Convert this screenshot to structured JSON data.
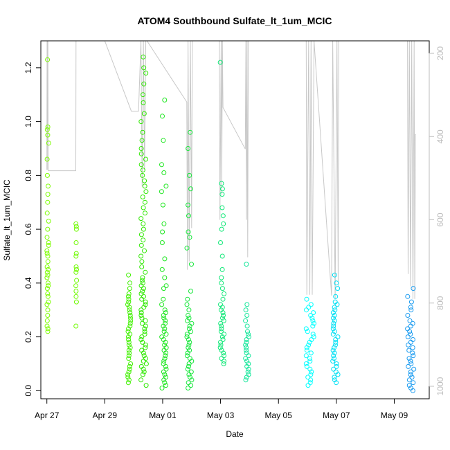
{
  "chart_data": {
    "type": "scatter",
    "title": "ATOM4 Southbound Sulfate_lt_1um_MCIC",
    "xlabel": "Date",
    "ylabel": "Sulfate_lt_1um_MCIC",
    "x_ticks": [
      "Apr 27",
      "Apr 29",
      "May 01",
      "May 03",
      "May 05",
      "May 07",
      "May 09"
    ],
    "y_ticks": [
      "0.0",
      "0.2",
      "0.4",
      "0.6",
      "0.8",
      "1.0",
      "1.2"
    ],
    "y2_ticks": [
      "200",
      "400",
      "600",
      "800",
      "1000"
    ],
    "xlim": [
      "2018-04-26T19:00",
      "2018-05-10T05:00"
    ],
    "ylim": [
      -0.03,
      1.3
    ],
    "y2lim": [
      1030,
      170
    ],
    "y2_reversed": true,
    "grid": false,
    "colors": {
      "axis": "#000000",
      "secondary_axis": "#bdbdbd",
      "pressure_trace": "#c8c8c8"
    },
    "point_clusters": [
      {
        "start": "2018-04-27T00:00",
        "end": "2018-04-27T01:30",
        "color": "#7cfc00",
        "values": [
          0.22,
          0.23,
          0.24,
          0.26,
          0.28,
          0.3,
          0.32,
          0.33,
          0.35,
          0.36,
          0.38,
          0.39,
          0.4,
          0.42,
          0.43,
          0.44,
          0.45,
          0.46,
          0.48,
          0.5,
          0.51,
          0.52,
          0.54,
          0.55,
          0.57,
          0.6,
          0.63,
          0.66,
          0.7,
          0.73,
          0.76,
          0.8,
          0.86,
          0.92,
          0.95,
          0.97,
          0.98,
          1.23
        ]
      },
      {
        "start": "2018-04-28T00:00",
        "end": "2018-04-28T00:40",
        "color": "#6ffa00",
        "values": [
          0.24,
          0.33,
          0.35,
          0.37,
          0.39,
          0.41,
          0.44,
          0.45,
          0.46,
          0.5,
          0.51,
          0.55,
          0.6,
          0.61,
          0.62
        ]
      },
      {
        "start": "2018-04-29T19:00",
        "end": "2018-04-29T21:30",
        "color": "#40f000",
        "values": [
          0.03,
          0.04,
          0.05,
          0.06,
          0.07,
          0.08,
          0.09,
          0.1,
          0.12,
          0.13,
          0.14,
          0.15,
          0.16,
          0.17,
          0.18,
          0.19,
          0.2,
          0.21,
          0.22,
          0.23,
          0.24,
          0.25,
          0.26,
          0.27,
          0.28,
          0.29,
          0.3,
          0.31,
          0.32,
          0.33,
          0.34,
          0.35,
          0.36,
          0.38,
          0.4,
          0.43
        ]
      },
      {
        "start": "2018-04-30T06:00",
        "end": "2018-04-30T10:30",
        "color": "#2ee800",
        "values": [
          0.02,
          0.04,
          0.06,
          0.07,
          0.08,
          0.09,
          0.1,
          0.11,
          0.12,
          0.13,
          0.14,
          0.15,
          0.16,
          0.17,
          0.18,
          0.19,
          0.2,
          0.21,
          0.22,
          0.23,
          0.24,
          0.25,
          0.26,
          0.27,
          0.28,
          0.29,
          0.3,
          0.31,
          0.32,
          0.33,
          0.34,
          0.35,
          0.36,
          0.37,
          0.38,
          0.39,
          0.4,
          0.41,
          0.42,
          0.44,
          0.46,
          0.48,
          0.5,
          0.52,
          0.54,
          0.56,
          0.58,
          0.6,
          0.62,
          0.64,
          0.66,
          0.68,
          0.7,
          0.72,
          0.74,
          0.76,
          0.78,
          0.8,
          0.82,
          0.84,
          0.86,
          0.88,
          0.9,
          0.93,
          0.96,
          1.0,
          1.03,
          1.07,
          1.1,
          1.14,
          1.18,
          1.2,
          1.24
        ]
      },
      {
        "start": "2018-04-30T23:00",
        "end": "2018-05-01T03:00",
        "color": "#1ee620",
        "values": [
          0.01,
          0.02,
          0.03,
          0.04,
          0.05,
          0.06,
          0.07,
          0.08,
          0.09,
          0.1,
          0.11,
          0.12,
          0.13,
          0.14,
          0.15,
          0.16,
          0.17,
          0.18,
          0.19,
          0.2,
          0.21,
          0.22,
          0.23,
          0.24,
          0.25,
          0.26,
          0.27,
          0.28,
          0.29,
          0.3,
          0.32,
          0.34,
          0.38,
          0.39,
          0.42,
          0.45,
          0.49,
          0.55,
          0.59,
          0.62,
          0.69,
          0.74,
          0.76,
          0.81,
          0.84,
          0.93,
          1.02,
          1.08
        ]
      },
      {
        "start": "2018-05-01T20:00",
        "end": "2018-05-02T00:30",
        "color": "#16e63a",
        "values": [
          0.01,
          0.02,
          0.03,
          0.04,
          0.05,
          0.06,
          0.07,
          0.08,
          0.09,
          0.1,
          0.11,
          0.12,
          0.13,
          0.14,
          0.15,
          0.16,
          0.17,
          0.18,
          0.19,
          0.2,
          0.21,
          0.22,
          0.23,
          0.24,
          0.25,
          0.26,
          0.27,
          0.28,
          0.3,
          0.32,
          0.34,
          0.37,
          0.47,
          0.53,
          0.57,
          0.59,
          0.65,
          0.69,
          0.75,
          0.8,
          0.9,
          0.96
        ]
      },
      {
        "start": "2018-05-02T23:30",
        "end": "2018-05-03T03:00",
        "color": "#10e878",
        "values": [
          0.1,
          0.11,
          0.12,
          0.13,
          0.14,
          0.15,
          0.16,
          0.17,
          0.18,
          0.19,
          0.2,
          0.21,
          0.22,
          0.23,
          0.24,
          0.25,
          0.26,
          0.27,
          0.28,
          0.29,
          0.3,
          0.31,
          0.32,
          0.34,
          0.36,
          0.38,
          0.4,
          0.42,
          0.45,
          0.5,
          0.55,
          0.6,
          0.62,
          0.65,
          0.68,
          0.73,
          0.75,
          0.77,
          1.22
        ]
      },
      {
        "start": "2018-05-03T20:30",
        "end": "2018-05-03T23:30",
        "color": "#14e69a",
        "values": [
          0.04,
          0.05,
          0.06,
          0.07,
          0.08,
          0.09,
          0.1,
          0.11,
          0.12,
          0.13,
          0.14,
          0.15,
          0.16,
          0.17,
          0.18,
          0.19,
          0.2,
          0.21,
          0.22,
          0.24,
          0.26,
          0.28,
          0.3,
          0.32,
          0.47
        ]
      },
      {
        "start": "2018-05-05T23:00",
        "end": "2018-05-06T05:30",
        "color": "#00ffff",
        "values": [
          0.02,
          0.03,
          0.04,
          0.05,
          0.06,
          0.07,
          0.08,
          0.09,
          0.1,
          0.11,
          0.12,
          0.13,
          0.14,
          0.15,
          0.16,
          0.17,
          0.18,
          0.19,
          0.2,
          0.21,
          0.22,
          0.23,
          0.24,
          0.25,
          0.26,
          0.27,
          0.28,
          0.29,
          0.3,
          0.31,
          0.32,
          0.34
        ]
      },
      {
        "start": "2018-05-06T21:00",
        "end": "2018-05-07T01:30",
        "color": "#00e0f4",
        "values": [
          0.03,
          0.04,
          0.05,
          0.06,
          0.07,
          0.08,
          0.09,
          0.1,
          0.11,
          0.12,
          0.13,
          0.14,
          0.15,
          0.16,
          0.17,
          0.18,
          0.19,
          0.2,
          0.21,
          0.22,
          0.23,
          0.24,
          0.25,
          0.26,
          0.27,
          0.28,
          0.29,
          0.3,
          0.31,
          0.32,
          0.33,
          0.35,
          0.38,
          0.4,
          0.43
        ]
      },
      {
        "start": "2018-05-09T11:00",
        "end": "2018-05-09T17:00",
        "color": "#1a9bf0",
        "values": [
          0.0,
          0.01,
          0.02,
          0.03,
          0.04,
          0.05,
          0.06,
          0.07,
          0.08,
          0.09,
          0.1,
          0.11,
          0.12,
          0.13,
          0.14,
          0.15,
          0.16,
          0.17,
          0.18,
          0.19,
          0.2,
          0.21,
          0.22,
          0.23,
          0.24,
          0.25,
          0.26,
          0.28,
          0.3,
          0.31,
          0.33,
          0.35,
          0.38
        ]
      }
    ],
    "pressure_trace": [
      [
        "2018-04-27T00:00",
        480
      ],
      [
        "2018-04-27T00:10",
        170
      ],
      [
        "2018-04-27T00:20",
        480
      ],
      [
        "2018-04-27T00:30",
        170
      ],
      [
        "2018-04-27T00:40",
        420
      ],
      [
        "2018-04-27T00:50",
        170
      ],
      [
        "2018-04-27T01:00",
        460
      ],
      [
        "2018-04-27T01:10",
        482
      ],
      [
        "2018-04-28T00:00",
        482
      ],
      [
        "2018-04-28T00:10",
        170
      ],
      [
        "2018-04-29T00:00",
        170
      ],
      [
        "2018-04-29T22:00",
        339
      ],
      [
        "2018-04-30T04:00",
        339
      ],
      [
        "2018-04-30T06:00",
        170
      ],
      [
        "2018-04-30T07:00",
        520
      ],
      [
        "2018-04-30T08:00",
        170
      ],
      [
        "2018-04-30T09:00",
        480
      ],
      [
        "2018-04-30T10:00",
        170
      ],
      [
        "2018-04-30T11:00",
        170
      ],
      [
        "2018-05-01T20:00",
        317
      ],
      [
        "2018-05-01T20:30",
        720
      ],
      [
        "2018-05-01T21:00",
        170
      ],
      [
        "2018-05-01T22:00",
        700
      ],
      [
        "2018-05-01T23:00",
        170
      ],
      [
        "2018-05-02T00:00",
        620
      ],
      [
        "2018-05-02T00:30",
        170
      ],
      [
        "2018-05-02T23:00",
        170
      ],
      [
        "2018-05-02T23:30",
        600
      ],
      [
        "2018-05-03T00:30",
        170
      ],
      [
        "2018-05-03T01:00",
        540
      ],
      [
        "2018-05-03T01:30",
        170
      ],
      [
        "2018-05-03T02:00",
        330
      ],
      [
        "2018-05-03T20:30",
        430
      ],
      [
        "2018-05-03T21:00",
        170
      ],
      [
        "2018-05-03T21:30",
        600
      ],
      [
        "2018-05-03T22:00",
        170
      ],
      [
        "2018-05-03T22:30",
        690
      ],
      [
        "2018-05-03T23:00",
        170
      ],
      [
        "2018-05-05T23:00",
        170
      ],
      [
        "2018-05-05T23:30",
        780
      ],
      [
        "2018-05-06T01:00",
        170
      ],
      [
        "2018-05-06T02:00",
        780
      ],
      [
        "2018-05-06T03:00",
        170
      ],
      [
        "2018-05-06T04:00",
        780
      ],
      [
        "2018-05-06T05:30",
        170
      ],
      [
        "2018-05-06T20:00",
        782
      ],
      [
        "2018-05-06T21:00",
        170
      ],
      [
        "2018-05-06T23:00",
        790
      ],
      [
        "2018-05-07T00:30",
        170
      ],
      [
        "2018-05-07T01:30",
        760
      ],
      [
        "2018-05-07T02:00",
        170
      ],
      [
        "2018-05-09T11:00",
        170
      ],
      [
        "2018-05-09T11:30",
        730
      ],
      [
        "2018-05-09T12:30",
        170
      ],
      [
        "2018-05-09T13:30",
        760
      ],
      [
        "2018-05-09T14:30",
        170
      ],
      [
        "2018-05-09T15:30",
        790
      ],
      [
        "2018-05-09T16:30",
        170
      ],
      [
        "2018-05-09T17:00",
        790
      ],
      [
        "2018-05-09T17:30",
        395
      ],
      [
        "2018-05-09T18:00",
        395
      ]
    ]
  }
}
